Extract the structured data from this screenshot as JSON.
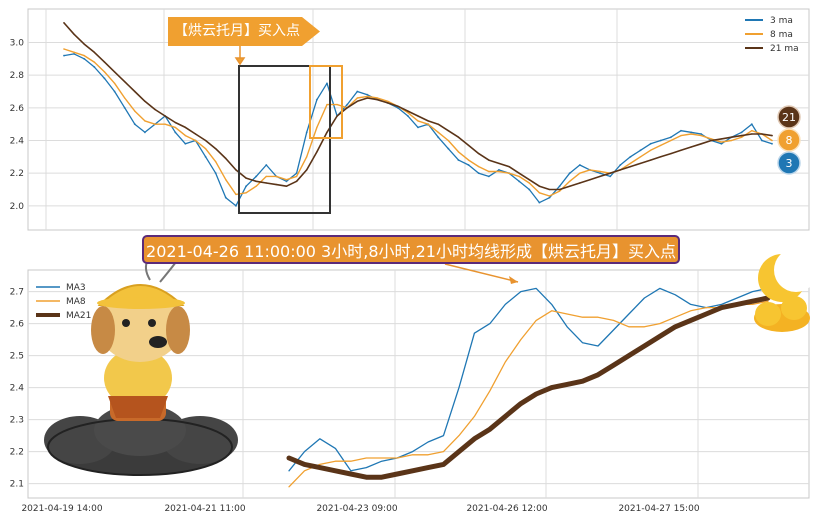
{
  "callout_text": "【烘云托月】买入点",
  "banner_text": "2021-04-26 11:00:00 3小时,8小时,21小时均线形成【烘云托月】买入点",
  "badges": [
    "21",
    "8",
    "3"
  ],
  "colors": {
    "ma3": "#1f77b4",
    "ma8": "#f0a030",
    "ma21": "#5a3418",
    "grid": "#dcdcdc"
  },
  "icons": {
    "mascot": "cartoon-dog-on-cloud-icon",
    "moon": "crescent-moon-cloud-icon"
  },
  "chart_data": [
    {
      "type": "line",
      "panel": "top",
      "ylim": [
        1.95,
        3.15
      ],
      "yticks": [
        "2.0",
        "2.2",
        "2.4",
        "2.6",
        "2.8",
        "3.0"
      ],
      "legend": {
        "position": "top-right",
        "entries": [
          "3 ma",
          "8 ma",
          "21 ma"
        ]
      },
      "grid": true,
      "x": [
        0,
        1,
        2,
        3,
        4,
        5,
        6,
        7,
        8,
        9,
        10,
        11,
        12,
        13,
        14,
        15,
        16,
        17,
        18,
        19,
        20,
        21,
        22,
        23,
        24,
        25,
        26,
        27,
        28,
        29,
        30,
        31,
        32,
        33,
        34,
        35,
        36,
        37,
        38,
        39,
        40,
        41,
        42,
        43,
        44,
        45,
        46,
        47,
        48,
        49,
        50,
        51,
        52,
        53,
        54,
        55,
        56,
        57,
        58,
        59,
        60,
        61,
        62,
        63,
        64,
        65,
        66,
        67,
        68,
        69,
        70
      ],
      "series": [
        {
          "name": "3 ma",
          "values": [
            2.92,
            2.93,
            2.9,
            2.85,
            2.78,
            2.7,
            2.6,
            2.5,
            2.45,
            2.5,
            2.55,
            2.45,
            2.38,
            2.4,
            2.3,
            2.2,
            2.05,
            2.0,
            2.12,
            2.18,
            2.25,
            2.18,
            2.15,
            2.2,
            2.45,
            2.65,
            2.75,
            2.55,
            2.62,
            2.7,
            2.68,
            2.65,
            2.63,
            2.6,
            2.55,
            2.48,
            2.5,
            2.42,
            2.35,
            2.28,
            2.25,
            2.2,
            2.18,
            2.22,
            2.2,
            2.15,
            2.1,
            2.02,
            2.05,
            2.12,
            2.2,
            2.25,
            2.22,
            2.2,
            2.18,
            2.25,
            2.3,
            2.34,
            2.38,
            2.4,
            2.42,
            2.46,
            2.45,
            2.44,
            2.4,
            2.38,
            2.42,
            2.45,
            2.5,
            2.4,
            2.38
          ]
        },
        {
          "name": "8 ma",
          "values": [
            2.96,
            2.94,
            2.92,
            2.88,
            2.82,
            2.75,
            2.66,
            2.58,
            2.52,
            2.5,
            2.5,
            2.48,
            2.43,
            2.4,
            2.35,
            2.27,
            2.16,
            2.07,
            2.08,
            2.12,
            2.18,
            2.18,
            2.16,
            2.18,
            2.3,
            2.48,
            2.62,
            2.62,
            2.6,
            2.66,
            2.67,
            2.66,
            2.64,
            2.61,
            2.57,
            2.52,
            2.5,
            2.45,
            2.4,
            2.33,
            2.28,
            2.24,
            2.21,
            2.21,
            2.2,
            2.18,
            2.14,
            2.08,
            2.06,
            2.09,
            2.15,
            2.2,
            2.22,
            2.21,
            2.2,
            2.22,
            2.26,
            2.3,
            2.34,
            2.37,
            2.4,
            2.43,
            2.44,
            2.43,
            2.41,
            2.39,
            2.4,
            2.42,
            2.46,
            2.44,
            2.4
          ]
        },
        {
          "name": "21 ma",
          "values": [
            3.12,
            3.05,
            2.99,
            2.94,
            2.88,
            2.82,
            2.76,
            2.7,
            2.64,
            2.59,
            2.55,
            2.51,
            2.48,
            2.44,
            2.4,
            2.35,
            2.29,
            2.22,
            2.17,
            2.15,
            2.14,
            2.13,
            2.12,
            2.15,
            2.22,
            2.33,
            2.45,
            2.55,
            2.6,
            2.64,
            2.66,
            2.65,
            2.63,
            2.61,
            2.58,
            2.55,
            2.52,
            2.5,
            2.46,
            2.42,
            2.37,
            2.32,
            2.28,
            2.26,
            2.24,
            2.2,
            2.16,
            2.12,
            2.1,
            2.1,
            2.12,
            2.14,
            2.16,
            2.18,
            2.2,
            2.22,
            2.24,
            2.26,
            2.28,
            2.3,
            2.32,
            2.34,
            2.36,
            2.38,
            2.4,
            2.41,
            2.42,
            2.43,
            2.44,
            2.44,
            2.43
          ]
        }
      ]
    },
    {
      "type": "line",
      "panel": "bottom",
      "ylim": [
        2.08,
        2.73
      ],
      "yticks": [
        "2.1",
        "2.2",
        "2.3",
        "2.4",
        "2.5",
        "2.6",
        "2.7"
      ],
      "xticks": [
        "2021-04-19 14:00",
        "2021-04-21 11:00",
        "2021-04-23 09:00",
        "2021-04-26 12:00",
        "2021-04-27 15:00"
      ],
      "legend": {
        "position": "top-left",
        "entries": [
          "MA3",
          "MA8",
          "MA21"
        ]
      },
      "grid": true,
      "x": [
        0,
        1,
        2,
        3,
        4,
        5,
        6,
        7,
        8,
        9,
        10,
        11,
        12,
        13,
        14,
        15,
        16,
        17,
        18,
        19,
        20,
        21,
        22,
        23,
        24,
        25,
        26,
        27,
        28,
        29,
        30,
        31
      ],
      "series": [
        {
          "name": "MA3",
          "values": [
            2.14,
            2.2,
            2.24,
            2.21,
            2.14,
            2.15,
            2.17,
            2.18,
            2.2,
            2.23,
            2.25,
            2.4,
            2.57,
            2.6,
            2.66,
            2.7,
            2.71,
            2.66,
            2.59,
            2.54,
            2.53,
            2.58,
            2.63,
            2.68,
            2.71,
            2.69,
            2.66,
            2.65,
            2.66,
            2.68,
            2.7,
            2.71
          ]
        },
        {
          "name": "MA8",
          "values": [
            2.09,
            2.14,
            2.16,
            2.17,
            2.17,
            2.18,
            2.18,
            2.18,
            2.19,
            2.19,
            2.2,
            2.25,
            2.31,
            2.39,
            2.48,
            2.55,
            2.61,
            2.64,
            2.63,
            2.62,
            2.62,
            2.61,
            2.59,
            2.59,
            2.6,
            2.62,
            2.64,
            2.65,
            2.65,
            2.66,
            2.66,
            2.67
          ]
        },
        {
          "name": "MA21",
          "values": [
            2.18,
            2.16,
            2.15,
            2.14,
            2.13,
            2.12,
            2.12,
            2.13,
            2.14,
            2.15,
            2.16,
            2.2,
            2.24,
            2.27,
            2.31,
            2.35,
            2.38,
            2.4,
            2.41,
            2.42,
            2.44,
            2.47,
            2.5,
            2.53,
            2.56,
            2.59,
            2.61,
            2.63,
            2.65,
            2.66,
            2.67,
            2.68
          ]
        }
      ]
    }
  ]
}
